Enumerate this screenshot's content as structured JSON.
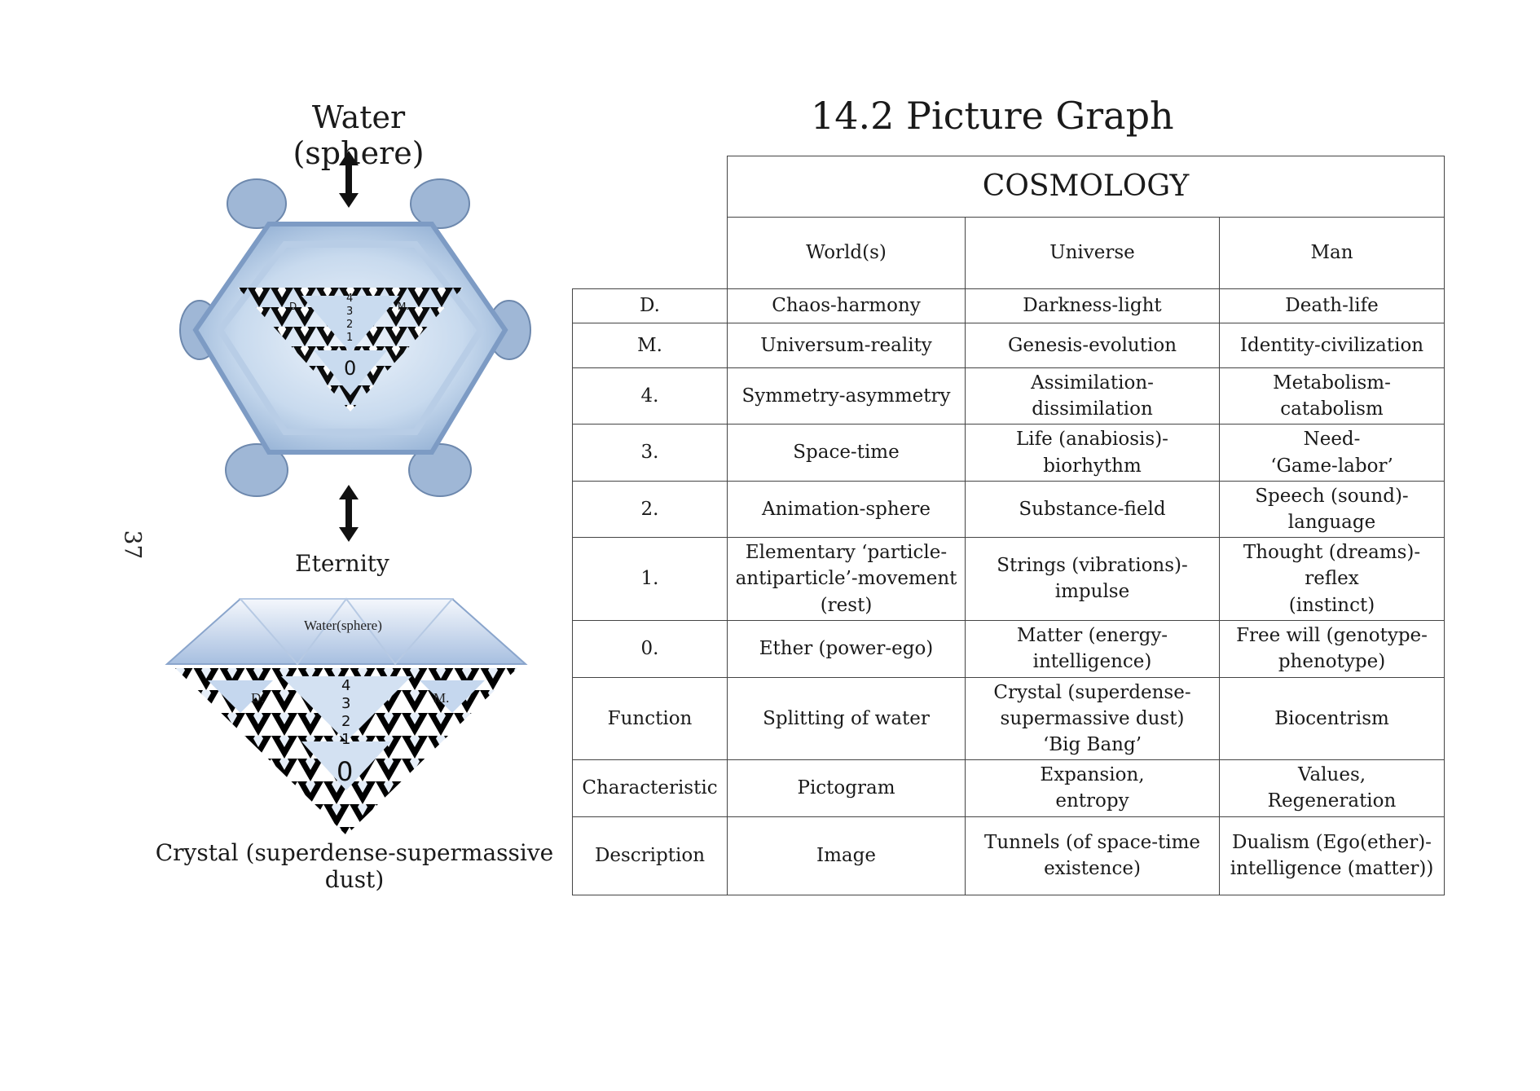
{
  "page_number": "37",
  "figure_top": {
    "title": "Water (sphere)",
    "caption": "Eternity",
    "label_d": "D.",
    "label_m": "M.",
    "levels": [
      "4",
      "3",
      "2",
      "1"
    ],
    "zero": "0"
  },
  "figure_bottom": {
    "label_top": "Water(sphere)",
    "label_d": "D.",
    "label_m": "M.",
    "levels": [
      "4",
      "3",
      "2",
      "1"
    ],
    "zero": "0",
    "caption": "Crystal (superdense-supermassive dust)"
  },
  "section_title": "14.2 Picture Graph",
  "table": {
    "title": "COSMOLOGY",
    "columns": [
      "World(s)",
      "Universe",
      "Man"
    ],
    "rows": [
      {
        "label": "D.",
        "cells": [
          "Chaos-harmony",
          "Darkness-light",
          "Death-life"
        ]
      },
      {
        "label": "M.",
        "cells": [
          "Universum-reality",
          "Genesis-evolution",
          "Identity-civilization"
        ]
      },
      {
        "label": "4.",
        "cells": [
          "Symmetry-asymmetry",
          "Assimilation-dissimilation",
          "Metabolism-catabolism"
        ]
      },
      {
        "label": "3.",
        "cells": [
          "Space-time",
          "Life (anabiosis)-biorhythm",
          "Need-\n‘Game-labor’"
        ]
      },
      {
        "label": "2.",
        "cells": [
          "Animation-sphere",
          "Substance-field",
          "Speech (sound)-\nlanguage"
        ]
      },
      {
        "label": "1.",
        "cells": [
          "Elementary ‘particle-\nantiparticle’-movement\n(rest)",
          "Strings (vibrations)-impulse",
          "Thought (dreams)-reflex\n(instinct)"
        ]
      },
      {
        "label": "0.",
        "cells": [
          "Ether (power-ego)",
          "Matter (energy-intelligence)",
          "Free will (genotype-\nphenotype)"
        ]
      },
      {
        "label": "Function",
        "cells": [
          "Splitting of water",
          "Crystal (superdense-\nsupermassive dust)\n‘Big Bang’",
          "Biocentrism"
        ]
      },
      {
        "label": "Characteristic",
        "cells": [
          "Pictogram",
          "Expansion,\nentropy",
          "Values,\nRegeneration"
        ]
      },
      {
        "label": "Description",
        "cells": [
          "Image",
          "Tunnels (of space-time\nexistence)",
          "Dualism (Ego(ether)-\nintelligence (matter))"
        ]
      }
    ]
  },
  "colors": {
    "crystal_light": "#d8e6f5",
    "crystal_mid": "#a9c3e2",
    "crystal_dark": "#6f8fb8",
    "fractal": "#000000",
    "table_border": "#444444"
  }
}
